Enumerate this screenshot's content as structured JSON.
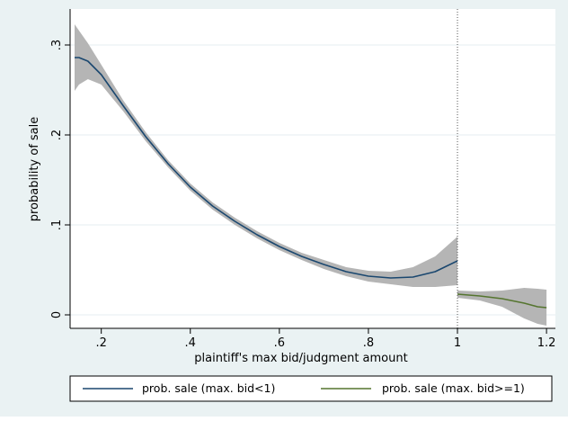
{
  "chart_data": {
    "type": "line",
    "xlabel": "plaintiff's max bid/judgment amount",
    "ylabel": "probability of sale",
    "xlim": [
      0.13,
      1.22
    ],
    "ylim": [
      -0.015,
      0.34
    ],
    "x_ticks": [
      0.2,
      0.4,
      0.6,
      0.8,
      1.0,
      1.2
    ],
    "x_tick_labels": [
      ".2",
      ".4",
      ".6",
      ".8",
      "1",
      "1.2"
    ],
    "y_ticks": [
      0,
      0.1,
      0.2,
      0.3
    ],
    "y_tick_labels": [
      "0",
      ".1",
      ".2",
      ".3"
    ],
    "grid": "horizontal",
    "reference_line_x": 1.0,
    "legend_position": "bottom",
    "colors": {
      "background": "#eaf2f3",
      "plot_background": "#ffffff",
      "ci_band": "#b5b5b5",
      "series_below": "#1a476f",
      "series_above": "#55752f"
    },
    "series": [
      {
        "name": "prob. sale (max. bid<1)",
        "color": "#1a476f",
        "x": [
          0.14,
          0.15,
          0.17,
          0.2,
          0.25,
          0.3,
          0.35,
          0.4,
          0.45,
          0.5,
          0.55,
          0.6,
          0.65,
          0.7,
          0.75,
          0.8,
          0.85,
          0.9,
          0.95,
          1.0
        ],
        "y": [
          0.286,
          0.286,
          0.282,
          0.267,
          0.232,
          0.198,
          0.168,
          0.142,
          0.121,
          0.104,
          0.089,
          0.076,
          0.065,
          0.056,
          0.048,
          0.043,
          0.041,
          0.042,
          0.048,
          0.06
        ],
        "ci_lower": [
          0.249,
          0.256,
          0.262,
          0.256,
          0.226,
          0.193,
          0.164,
          0.138,
          0.117,
          0.1,
          0.085,
          0.072,
          0.061,
          0.051,
          0.043,
          0.037,
          0.034,
          0.031,
          0.031,
          0.033
        ],
        "ci_upper": [
          0.323,
          0.316,
          0.302,
          0.278,
          0.238,
          0.203,
          0.172,
          0.146,
          0.125,
          0.108,
          0.093,
          0.08,
          0.069,
          0.061,
          0.053,
          0.049,
          0.048,
          0.053,
          0.065,
          0.087
        ]
      },
      {
        "name": "prob. sale (max. bid>=1)",
        "color": "#55752f",
        "x": [
          1.0,
          1.05,
          1.1,
          1.15,
          1.18,
          1.2
        ],
        "y": [
          0.023,
          0.021,
          0.018,
          0.013,
          0.009,
          0.008
        ],
        "ci_lower": [
          0.019,
          0.016,
          0.009,
          -0.004,
          -0.01,
          -0.012
        ],
        "ci_upper": [
          0.027,
          0.026,
          0.027,
          0.03,
          0.029,
          0.028
        ]
      }
    ]
  }
}
